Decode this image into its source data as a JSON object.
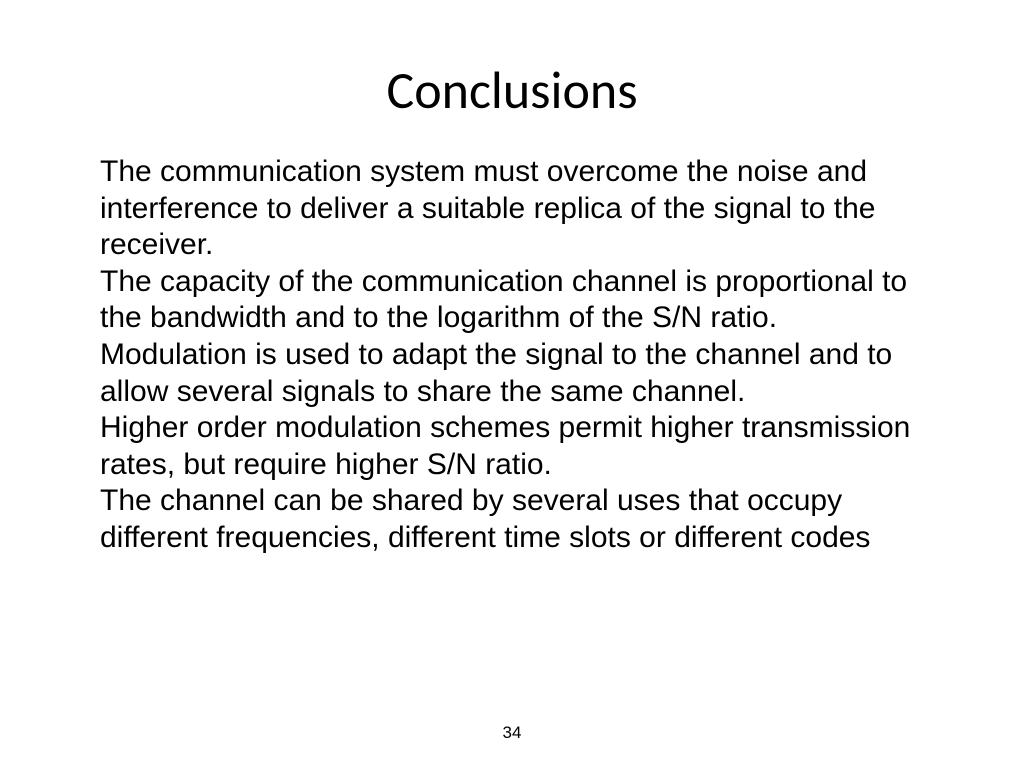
{
  "slide": {
    "title": "Conclusions",
    "paragraphs": [
      "The communication system must overcome the noise and interference to deliver a suitable replica of the signal to the receiver.",
      "The capacity of the communication channel is proportional to the bandwidth and to the logarithm of the S/N ratio.",
      "Modulation is used to adapt the signal to the channel and to allow several signals to share the same channel.",
      "Higher order modulation schemes permit higher transmission rates, but require higher S/N ratio.",
      "The channel can be shared by several uses that occupy different frequencies, different time slots or different codes"
    ],
    "page_number": "34"
  },
  "style": {
    "title_font": "Candara",
    "title_fontsize_pt": 40,
    "body_font": "Arial",
    "body_fontsize_pt": 24,
    "background_color": "#ffffff",
    "text_color": "#000000"
  }
}
